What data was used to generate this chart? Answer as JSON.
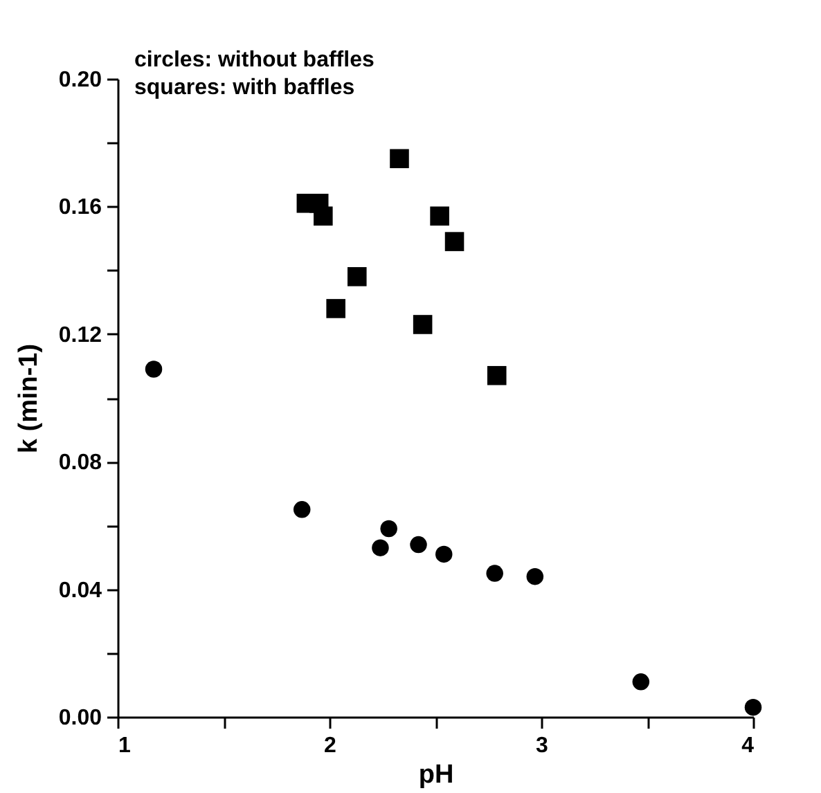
{
  "chart_data": {
    "type": "scatter",
    "xlabel": "pH",
    "ylabel": "k (min-1)",
    "annotations": [
      "circles: without baffles",
      "squares: with baffles"
    ],
    "xlim": [
      1,
      4
    ],
    "ylim": [
      0,
      0.2
    ],
    "xticks": [
      1,
      {
        "value": 1.5,
        "label": null
      },
      2,
      {
        "value": 2.5,
        "label": null
      },
      3,
      {
        "value": 3.5,
        "label": null
      },
      4
    ],
    "yticks": [
      {
        "value": 0,
        "label": "0.00"
      },
      {
        "value": 0.02,
        "label": null
      },
      {
        "value": 0.04,
        "label": "0.04"
      },
      {
        "value": 0.06,
        "label": null
      },
      {
        "value": 0.08,
        "label": "0.08"
      },
      {
        "value": 0.1,
        "label": null
      },
      {
        "value": 0.12,
        "label": "0.12"
      },
      {
        "value": 0.14,
        "label": null
      },
      {
        "value": 0.16,
        "label": "0.16"
      },
      {
        "value": 0.18,
        "label": null
      },
      {
        "value": 0.2,
        "label": "0.20"
      }
    ],
    "grid": false,
    "series": [
      {
        "color": "#000000",
        "marker": "circle",
        "x": [
          1.17,
          1.87,
          2.28,
          2.24,
          2.42,
          2.54,
          2.78,
          2.97,
          3.47,
          4.0
        ],
        "values": [
          0.109,
          0.065,
          0.059,
          0.053,
          0.054,
          0.051,
          0.045,
          0.044,
          0.011,
          0.003
        ]
      },
      {
        "color": "#000000",
        "marker": "square",
        "x": [
          1.89,
          1.95,
          1.97,
          2.33,
          2.52,
          2.59,
          2.13,
          2.03,
          2.44,
          2.79
        ],
        "values": [
          0.161,
          0.161,
          0.157,
          0.175,
          0.157,
          0.149,
          0.138,
          0.128,
          0.123,
          0.107
        ]
      }
    ]
  }
}
